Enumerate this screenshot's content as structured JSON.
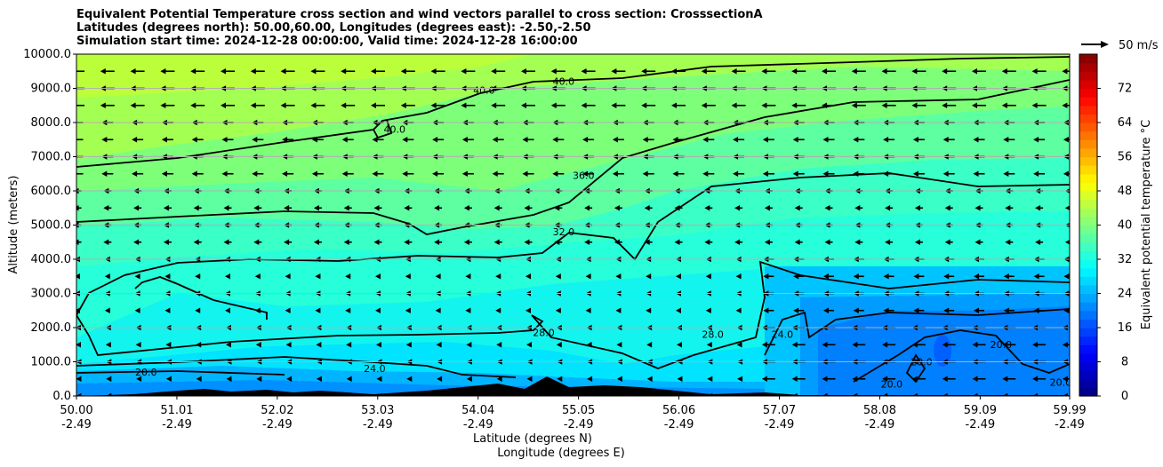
{
  "titles": [
    "Equivalent Potential Temperature cross section and wind vectors parallel to cross section: CrosssectionA",
    "Latitudes (degrees north): 50.00,60.00, Longitudes (degrees east): -2.50,-2.50",
    "Simulation start time: 2024-12-28 00:00:00, Valid time: 2024-12-28 16:00:00"
  ],
  "chart_data": {
    "type": "heatmap",
    "title": "Equivalent Potential Temperature cross section and wind vectors parallel to cross section: CrosssectionA",
    "xlabel": "Latitude (degrees N)",
    "xlabel2": "Longitude (degrees E)",
    "ylabel": "Altitude (meters)",
    "colorbar_label": "Equivalent potential temperature $^\\circ$C",
    "ylim": [
      0,
      10000
    ],
    "clim": [
      0,
      80
    ],
    "y_ticks": [
      "0.0",
      "1000.0",
      "2000.0",
      "3000.0",
      "4000.0",
      "5000.0",
      "6000.0",
      "7000.0",
      "8000.0",
      "9000.0",
      "10000.0"
    ],
    "y_tick_values": [
      0,
      1000,
      2000,
      3000,
      4000,
      5000,
      6000,
      7000,
      8000,
      9000,
      10000
    ],
    "x_ticks": [
      {
        "lat": "50.00",
        "lon": "-2.49"
      },
      {
        "lat": "51.01",
        "lon": "-2.49"
      },
      {
        "lat": "52.02",
        "lon": "-2.49"
      },
      {
        "lat": "53.03",
        "lon": "-2.49"
      },
      {
        "lat": "54.04",
        "lon": "-2.49"
      },
      {
        "lat": "55.05",
        "lon": "-2.49"
      },
      {
        "lat": "56.06",
        "lon": "-2.49"
      },
      {
        "lat": "57.07",
        "lon": "-2.49"
      },
      {
        "lat": "58.08",
        "lon": "-2.49"
      },
      {
        "lat": "59.09",
        "lon": "-2.49"
      },
      {
        "lat": "59.99",
        "lon": "-2.49"
      }
    ],
    "colorbar_ticks": [
      "0",
      "8",
      "16",
      "24",
      "32",
      "40",
      "48",
      "56",
      "64",
      "72"
    ],
    "colorbar_tick_values": [
      0,
      8,
      16,
      24,
      32,
      40,
      48,
      56,
      64,
      72
    ],
    "wind_key_label": "50 m/s",
    "wind_direction": "westward (toward lower latitude)",
    "contour_levels": [
      20,
      24,
      28,
      32,
      36,
      40
    ],
    "contour_labels": [
      {
        "text": "40.0",
        "lat": 54.1,
        "alt": 8850
      },
      {
        "text": "40.0",
        "lat": 54.9,
        "alt": 9100
      },
      {
        "text": "40.0",
        "lat": 53.2,
        "alt": 7700
      },
      {
        "text": "36.0",
        "lat": 55.1,
        "alt": 6350
      },
      {
        "text": "32.0",
        "lat": 54.9,
        "alt": 4700
      },
      {
        "text": "28.0",
        "lat": 56.4,
        "alt": 1700
      },
      {
        "text": "28.0",
        "lat": 54.7,
        "alt": 1750
      },
      {
        "text": "24.0",
        "lat": 57.1,
        "alt": 1700
      },
      {
        "text": "24.0",
        "lat": 53.0,
        "alt": 700
      },
      {
        "text": "20.0",
        "lat": 50.7,
        "alt": 600
      },
      {
        "text": "20.0",
        "lat": 58.5,
        "alt": 900
      },
      {
        "text": "20.0",
        "lat": 59.3,
        "alt": 1400
      },
      {
        "text": "20.0",
        "lat": 58.2,
        "alt": 250
      },
      {
        "text": "20.0",
        "lat": 59.9,
        "alt": 300
      }
    ]
  }
}
